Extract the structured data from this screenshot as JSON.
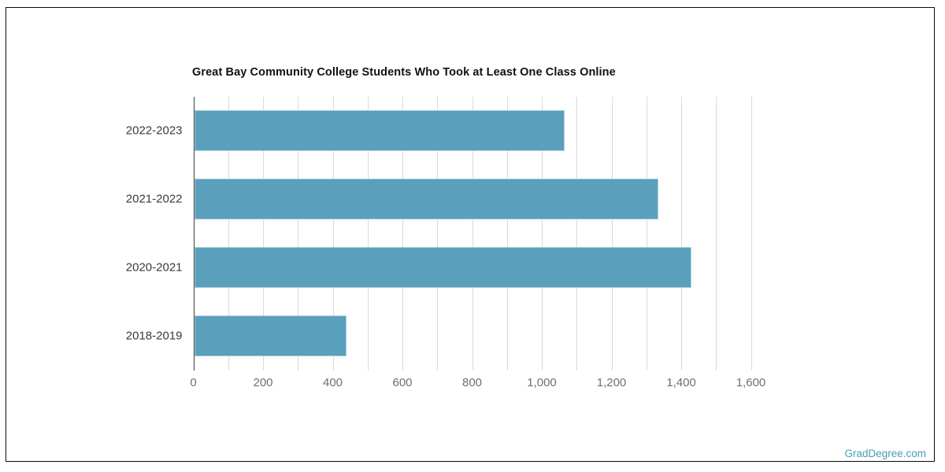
{
  "colors": {
    "bar": "#5aa0bc",
    "grid": "#d9d9d9",
    "axis_line": "#3c3c3c",
    "category_label": "#3a3a3a",
    "tick_label": "#6f6f6f",
    "title": "#111111",
    "watermark": "#4a9db6",
    "frame_border": "#0b0b0b"
  },
  "chart_data": {
    "type": "bar",
    "orientation": "horizontal",
    "title": "Great Bay Community College Students Who Took at Least One Class Online",
    "categories": [
      "2022-2023",
      "2021-2022",
      "2020-2021",
      "2018-2019"
    ],
    "values": [
      1063,
      1330,
      1425,
      437
    ],
    "xlabel": "",
    "ylabel": "",
    "xlim": [
      0,
      1600
    ],
    "x_tick_step": 200,
    "x_minor_grid_step": 100,
    "x_tick_labels": [
      "0",
      "200",
      "400",
      "600",
      "800",
      "1,000",
      "1,200",
      "1,400",
      "1,600"
    ],
    "grid": true,
    "legend": false
  },
  "watermark": {
    "label": "GradDegree.com"
  }
}
